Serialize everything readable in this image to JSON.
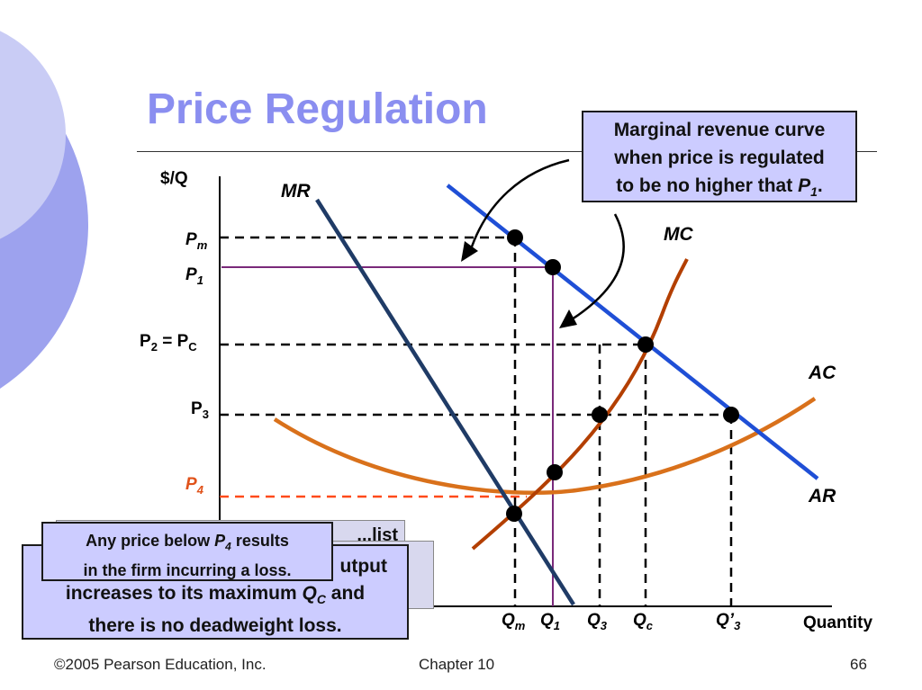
{
  "slide": {
    "title": "Price Regulation"
  },
  "diagram": {
    "y_axis_label": "$/Q",
    "x_axis_label": "Quantity",
    "curve_labels": {
      "mr": "MR",
      "mc": "MC",
      "ac": "AC",
      "ar": "AR"
    },
    "price_labels": {
      "pm": {
        "main": "P",
        "sub": "m"
      },
      "p1": {
        "main": "P",
        "sub": "1"
      },
      "p2": {
        "main": "P",
        "sub": "2",
        "eq": " = P",
        "sub2": "C"
      },
      "p3": {
        "main": "P",
        "sub": "3"
      },
      "p4": {
        "main": "P",
        "sub": "4"
      }
    },
    "quantity_labels": {
      "qm": {
        "main": "Q",
        "sub": "m"
      },
      "q1": {
        "main": "Q",
        "sub": "1"
      },
      "q3": {
        "main": "Q",
        "sub": "3"
      },
      "qc": {
        "main": "Q",
        "sub": "c"
      },
      "q3prime": {
        "main": "Q’",
        "sub": "3"
      }
    },
    "colors": {
      "mr": "#1f3b66",
      "ar": "#1f4fd6",
      "mc": "#b33f00",
      "ac": "#d9711b",
      "p1_line": "#7a2a7a",
      "p4_line": "#ff4a1a",
      "p4_label": "#e0521a",
      "title": "#8a8ef0",
      "callout_fill": "#ccccff"
    }
  },
  "callouts": {
    "mr_note": {
      "line1": "Marginal revenue curve",
      "line2": "when price is regulated",
      "line3_prefix": "to be no higher that ",
      "line3_var": "P",
      "line3_sub": "1",
      "line3_suffix": "."
    },
    "loss_note": {
      "line1_prefix": "Any price below ",
      "line1_var": "P",
      "line1_sub": "4",
      "line1_suffix": " results",
      "line2": "in the firm incurring a loss."
    },
    "output_note": {
      "line1": "utput",
      "line2_prefix": "increases to its maximum ",
      "line2_var": "Q",
      "line2_sub": "C",
      "line2_suffix": " and",
      "line3": "there is no deadweight loss."
    },
    "hidden_fragment": "...list"
  },
  "footer": {
    "copyright": "©2005 Pearson Education, Inc.",
    "chapter": "Chapter 10",
    "page": "66"
  }
}
